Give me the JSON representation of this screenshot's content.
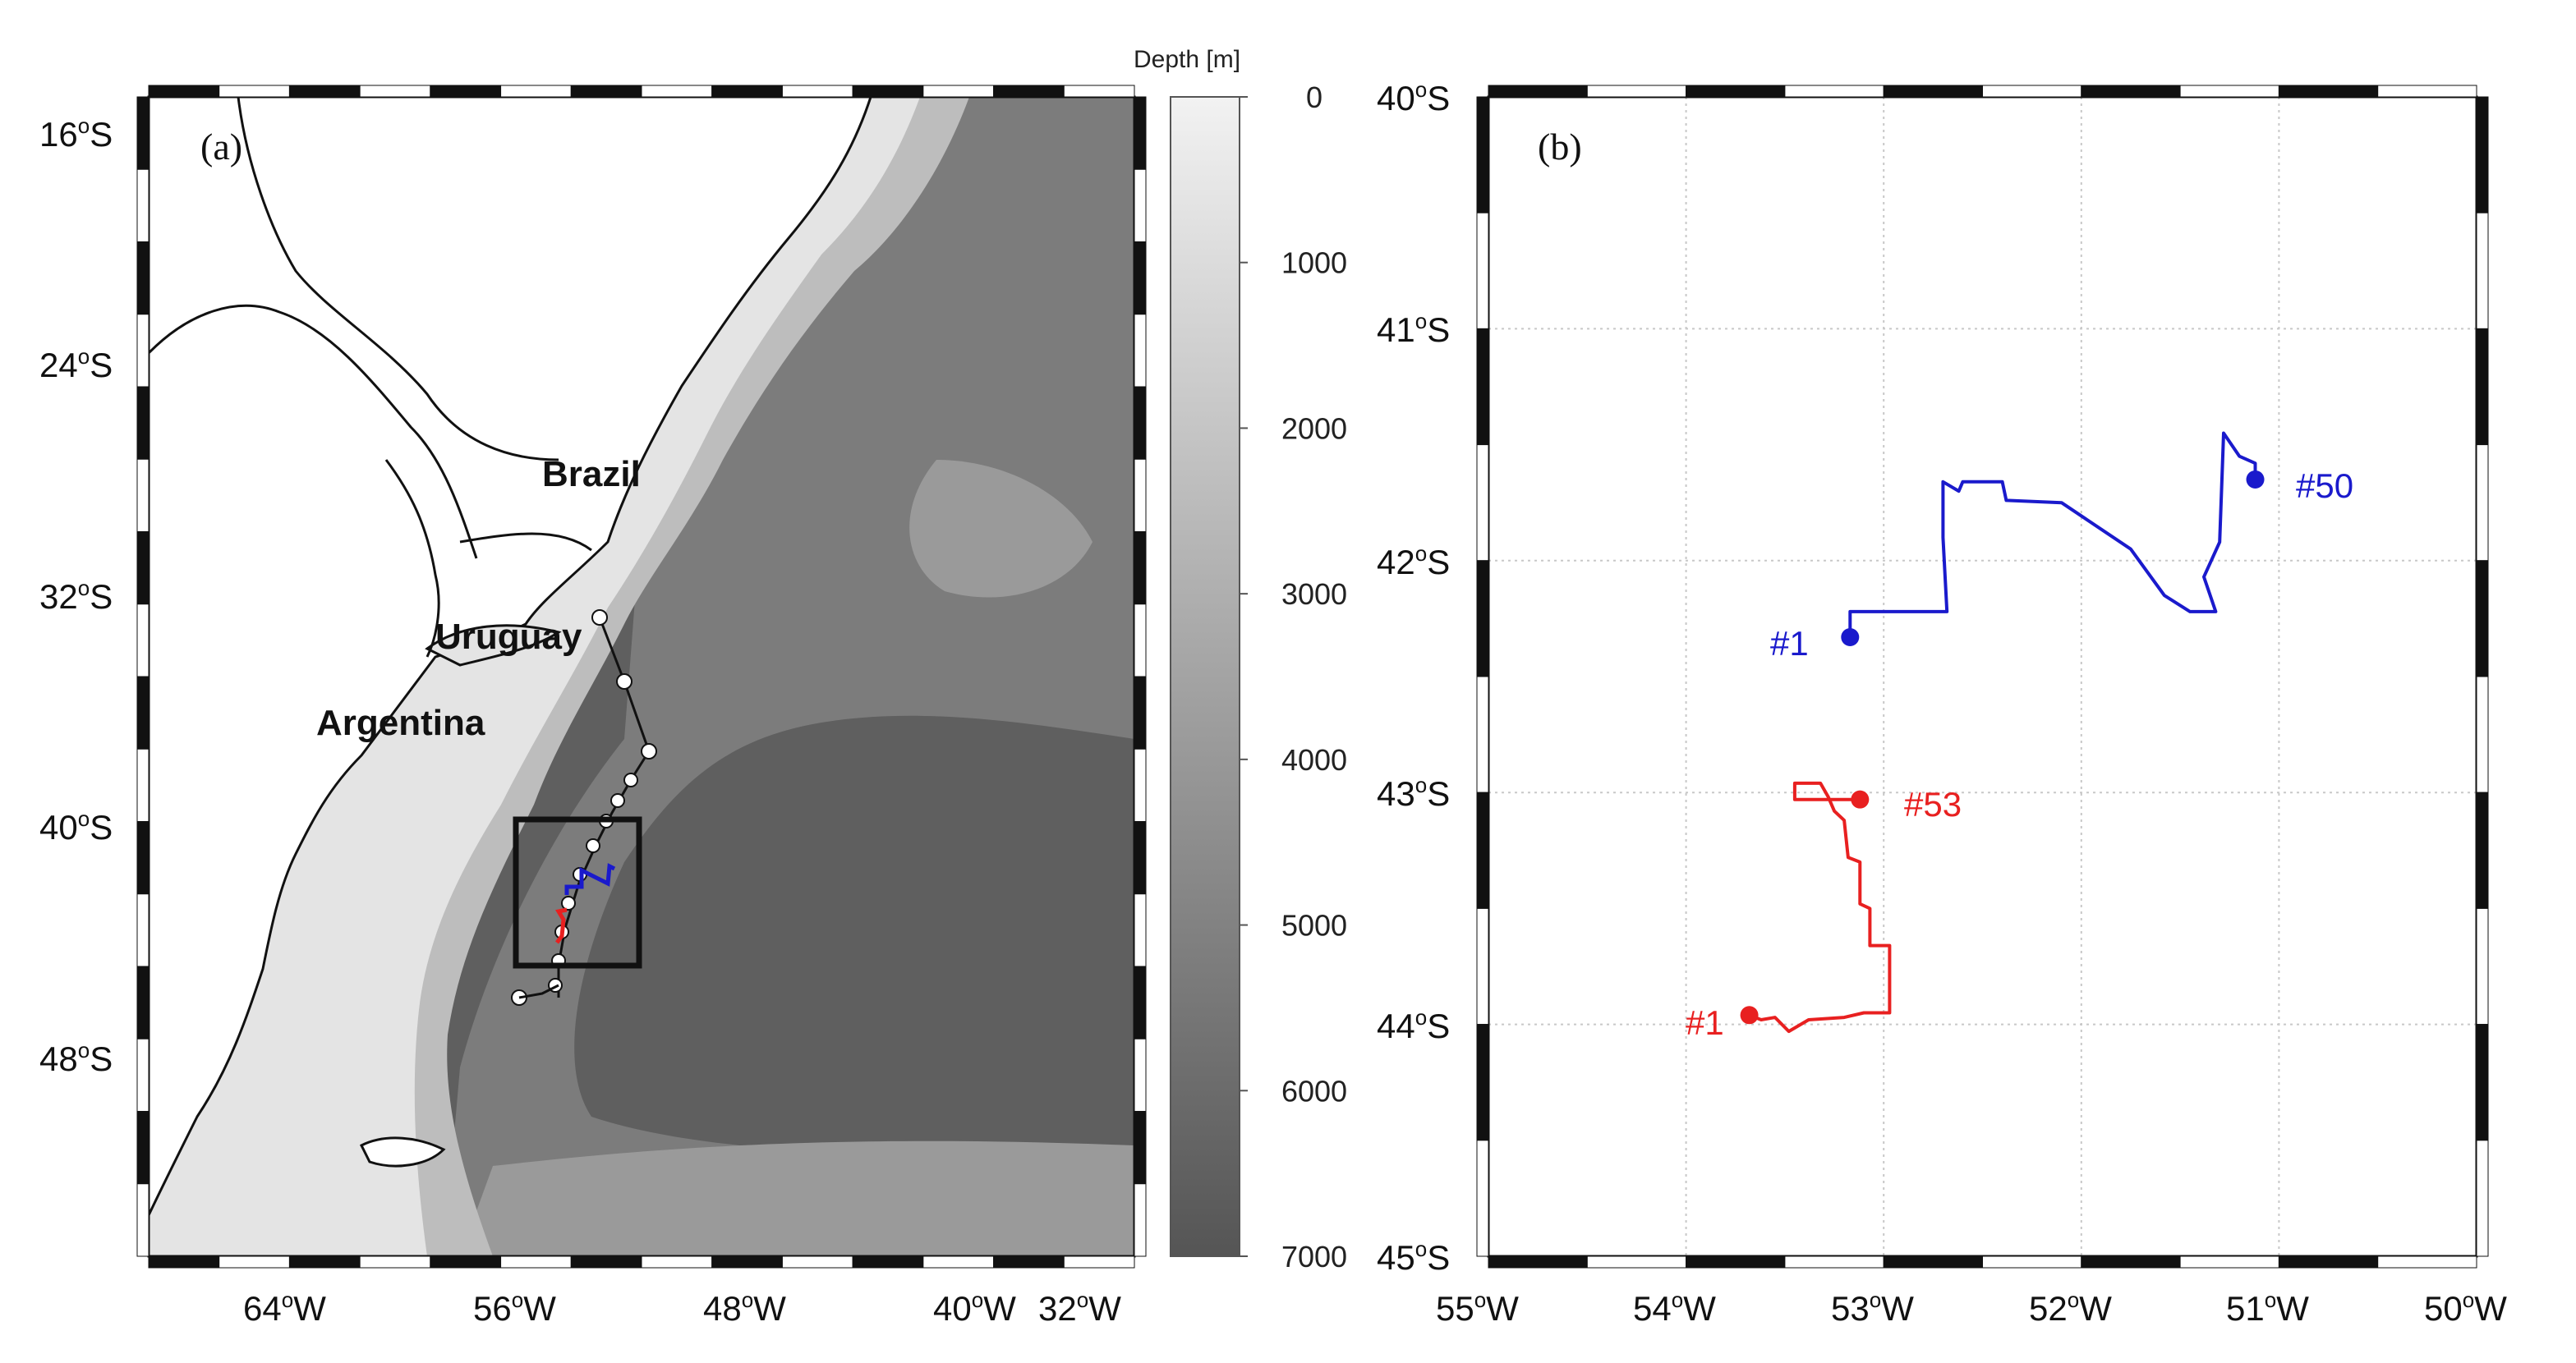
{
  "panel_a": {
    "label": "(a)",
    "lat_ticks": [
      "16",
      "24",
      "32",
      "40",
      "48"
    ],
    "lon_ticks": [
      "64",
      "56",
      "48",
      "40",
      "32"
    ],
    "lat_suffix": "S",
    "lon_suffix": "W",
    "degree_mark": "o",
    "countries": [
      "Brazil",
      "Uruguay",
      "Argentina"
    ],
    "colorbar": {
      "title": "Depth [m]",
      "ticks": [
        "0",
        "1000",
        "2000",
        "3000",
        "4000",
        "5000",
        "6000",
        "7000"
      ],
      "range": [
        0,
        7000
      ]
    },
    "colors": {
      "land": "#ffffff",
      "shelf": "#e4e4e4",
      "slope": "#bdbdbd",
      "mid": "#9a9a9a",
      "deep": "#7c7c7c",
      "abyss": "#5f5f5f",
      "box": "#111111"
    }
  },
  "panel_b": {
    "label": "(b)",
    "lat_ticks": [
      "40",
      "41",
      "42",
      "43",
      "44",
      "45"
    ],
    "lon_ticks": [
      "55",
      "54",
      "53",
      "52",
      "51",
      "50"
    ],
    "lat_suffix": "S",
    "lon_suffix": "W",
    "degree_mark": "o",
    "xlim": [
      -55,
      -50
    ],
    "ylim": [
      -45,
      -40
    ],
    "tracks": [
      {
        "color": "#1a1acc",
        "start_label": "#1",
        "end_label": "#50",
        "points": [
          [
            -53.17,
            -42.33
          ],
          [
            -53.17,
            -42.22
          ],
          [
            -52.68,
            -42.22
          ],
          [
            -52.7,
            -41.9
          ],
          [
            -52.7,
            -41.66
          ],
          [
            -52.62,
            -41.7
          ],
          [
            -52.6,
            -41.66
          ],
          [
            -52.4,
            -41.66
          ],
          [
            -52.38,
            -41.74
          ],
          [
            -52.1,
            -41.75
          ],
          [
            -51.75,
            -41.95
          ],
          [
            -51.58,
            -42.15
          ],
          [
            -51.45,
            -42.22
          ],
          [
            -51.32,
            -42.22
          ],
          [
            -51.38,
            -42.07
          ],
          [
            -51.3,
            -41.92
          ],
          [
            -51.28,
            -41.45
          ],
          [
            -51.2,
            -41.55
          ],
          [
            -51.12,
            -41.58
          ],
          [
            -51.12,
            -41.65
          ]
        ]
      },
      {
        "color": "#e82020",
        "start_label": "#1",
        "end_label": "#53",
        "points": [
          [
            -53.68,
            -43.96
          ],
          [
            -53.62,
            -43.98
          ],
          [
            -53.55,
            -43.97
          ],
          [
            -53.48,
            -44.03
          ],
          [
            -53.38,
            -43.98
          ],
          [
            -53.2,
            -43.97
          ],
          [
            -53.1,
            -43.95
          ],
          [
            -52.97,
            -43.95
          ],
          [
            -52.97,
            -43.66
          ],
          [
            -53.07,
            -43.66
          ],
          [
            -53.07,
            -43.5
          ],
          [
            -53.12,
            -43.48
          ],
          [
            -53.12,
            -43.3
          ],
          [
            -53.18,
            -43.28
          ],
          [
            -53.2,
            -43.12
          ],
          [
            -53.25,
            -43.08
          ],
          [
            -53.28,
            -43.02
          ],
          [
            -53.32,
            -42.96
          ],
          [
            -53.45,
            -42.96
          ],
          [
            -53.45,
            -43.03
          ],
          [
            -53.12,
            -43.03
          ]
        ]
      }
    ]
  }
}
